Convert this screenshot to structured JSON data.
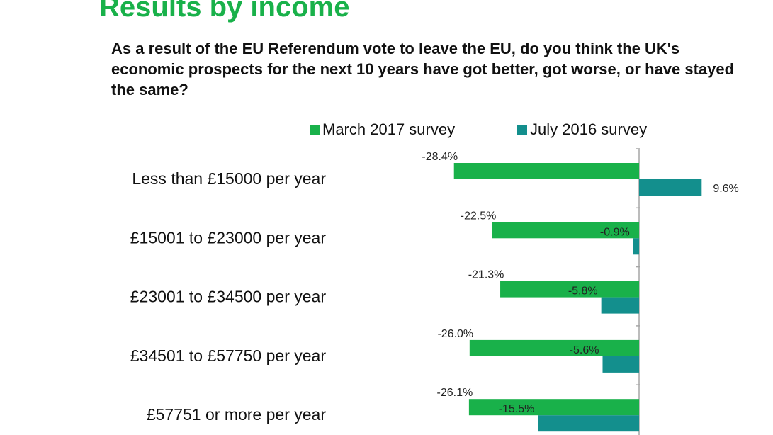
{
  "header": {
    "title": "Results by income",
    "question": "As a result of the EU Referendum vote to leave the EU, do you think the UK's economic prospects for the next 10 years have got better, got worse, or have stayed the same?"
  },
  "colors": {
    "title": "#19b14a",
    "march_2017": "#19b14a",
    "july_2016": "#138f8d",
    "axis": "#a6a6a6"
  },
  "chart_data": {
    "type": "bar",
    "orientation": "horizontal",
    "categories": [
      "Less than £15000 per year",
      "£15001 to £23000 per year",
      "£23001 to £34500 per year",
      "£34501 to £57750 per year",
      "£57751 or more per year"
    ],
    "series": [
      {
        "name": "March 2017 survey",
        "values": [
          -28.4,
          -22.5,
          -21.3,
          -26.0,
          -26.1
        ],
        "labels": [
          "-28.4%",
          "-22.5%",
          "-21.3%",
          "-26.0%",
          "-26.1%"
        ]
      },
      {
        "name": "July 2016 survey",
        "values": [
          9.6,
          -0.9,
          -5.8,
          -5.6,
          -15.5
        ],
        "labels": [
          "9.6%",
          "-0.9%",
          "-5.8%",
          "-5.6%",
          "-15.5%"
        ]
      }
    ],
    "legend_position": "top",
    "grid": false
  }
}
